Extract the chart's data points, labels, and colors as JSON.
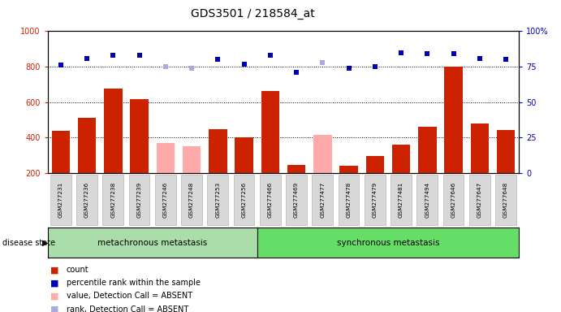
{
  "title": "GDS3501 / 218584_at",
  "samples": [
    "GSM277231",
    "GSM277236",
    "GSM277238",
    "GSM277239",
    "GSM277246",
    "GSM277248",
    "GSM277253",
    "GSM277256",
    "GSM277466",
    "GSM277469",
    "GSM277477",
    "GSM277478",
    "GSM277479",
    "GSM277481",
    "GSM277494",
    "GSM277646",
    "GSM277647",
    "GSM277648"
  ],
  "count_values": [
    440,
    510,
    675,
    615,
    370,
    350,
    450,
    400,
    665,
    245,
    415,
    240,
    295,
    360,
    460,
    800,
    480,
    445
  ],
  "absent_mask": [
    false,
    false,
    false,
    false,
    true,
    true,
    false,
    false,
    false,
    false,
    true,
    false,
    false,
    false,
    false,
    false,
    false,
    false
  ],
  "rank_values": [
    76,
    81,
    83,
    83,
    75,
    74,
    80,
    77,
    83,
    71,
    78,
    74,
    75,
    85,
    84,
    84,
    81,
    80
  ],
  "rank_absent_mask": [
    false,
    false,
    false,
    false,
    true,
    true,
    false,
    false,
    false,
    false,
    true,
    false,
    false,
    false,
    false,
    false,
    false,
    false
  ],
  "group1_count": 8,
  "group2_count": 10,
  "group1_label": "metachronous metastasis",
  "group2_label": "synchronous metastasis",
  "disease_state_label": "disease state",
  "ylim_left": [
    200,
    1000
  ],
  "ylim_right": [
    0,
    100
  ],
  "yticks_left": [
    200,
    400,
    600,
    800,
    1000
  ],
  "yticks_right": [
    0,
    25,
    50,
    75,
    100
  ],
  "bar_color_red": "#cc2200",
  "bar_color_pink": "#ffaaaa",
  "dot_color_blue": "#0000bb",
  "dot_color_light_blue": "#aaaadd",
  "grid_color": "black",
  "label_color_left": "#cc2200",
  "label_color_right": "#0000bb",
  "legend_items": [
    {
      "color": "#cc2200",
      "label": "count"
    },
    {
      "color": "#0000bb",
      "label": "percentile rank within the sample"
    },
    {
      "color": "#ffaaaa",
      "label": "value, Detection Call = ABSENT"
    },
    {
      "color": "#aaaadd",
      "label": "rank, Detection Call = ABSENT"
    }
  ]
}
